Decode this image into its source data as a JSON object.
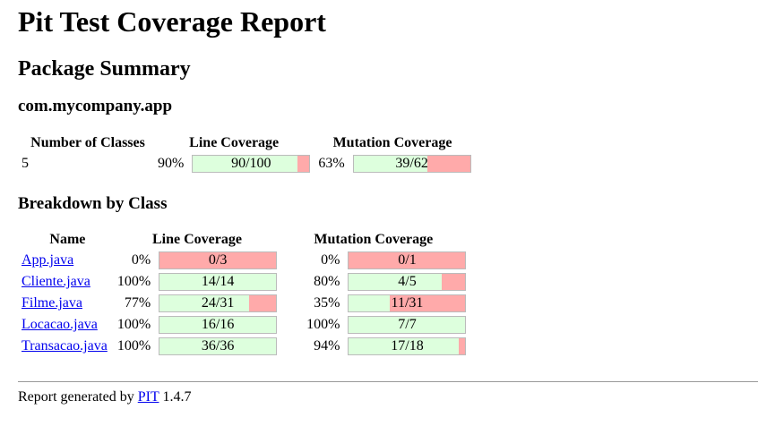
{
  "title": "Pit Test Coverage Report",
  "package_summary_heading": "Package Summary",
  "package_name": "com.mycompany.app",
  "summary": {
    "headers": {
      "classes": "Number of Classes",
      "line": "Line Coverage",
      "mutation": "Mutation Coverage"
    },
    "classes": "5",
    "line_pct": "90%",
    "line_ratio": "90/100",
    "line_fraction": 0.9,
    "mut_pct": "63%",
    "mut_ratio": "39/62",
    "mut_fraction": 0.63
  },
  "breakdown_heading": "Breakdown by Class",
  "breakdown": {
    "headers": {
      "name": "Name",
      "line": "Line Coverage",
      "mutation": "Mutation Coverage"
    },
    "rows": [
      {
        "name": "App.java",
        "line_pct": "0%",
        "line_ratio": "0/3",
        "line_fraction": 0.0,
        "mut_pct": "0%",
        "mut_ratio": "0/1",
        "mut_fraction": 0.0
      },
      {
        "name": "Cliente.java",
        "line_pct": "100%",
        "line_ratio": "14/14",
        "line_fraction": 1.0,
        "mut_pct": "80%",
        "mut_ratio": "4/5",
        "mut_fraction": 0.8
      },
      {
        "name": "Filme.java",
        "line_pct": "77%",
        "line_ratio": "24/31",
        "line_fraction": 0.77,
        "mut_pct": "35%",
        "mut_ratio": "11/31",
        "mut_fraction": 0.35
      },
      {
        "name": "Locacao.java",
        "line_pct": "100%",
        "line_ratio": "16/16",
        "line_fraction": 1.0,
        "mut_pct": "100%",
        "mut_ratio": "7/7",
        "mut_fraction": 1.0
      },
      {
        "name": "Transacao.java",
        "line_pct": "100%",
        "line_ratio": "36/36",
        "line_fraction": 1.0,
        "mut_pct": "94%",
        "mut_ratio": "17/18",
        "mut_fraction": 0.94
      }
    ]
  },
  "footer": {
    "prefix": "Report generated by ",
    "link": "PIT",
    "version": " 1.4.7"
  },
  "colors": {
    "covered": "#ddffdd",
    "uncovered": "#ffaaaa",
    "link": "#0000ee"
  }
}
